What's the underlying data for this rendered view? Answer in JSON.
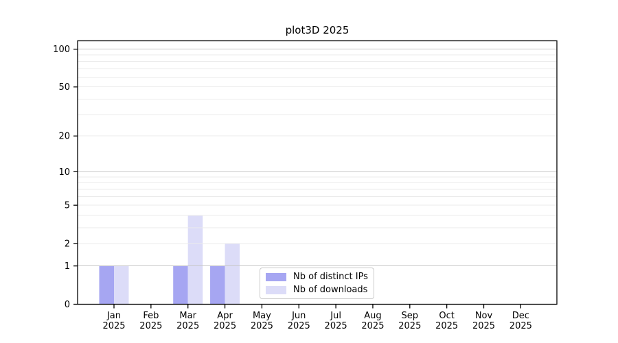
{
  "chart_data": {
    "type": "bar",
    "title": "plot3D 2025",
    "categories": [
      "Jan 2025",
      "Feb 2025",
      "Mar 2025",
      "Apr 2025",
      "May 2025",
      "Jun 2025",
      "Jul 2025",
      "Aug 2025",
      "Sep 2025",
      "Oct 2025",
      "Nov 2025",
      "Dec 2025"
    ],
    "series": [
      {
        "name": "Nb of distinct IPs",
        "color": "#a6a6f2",
        "values": [
          1,
          0,
          1,
          1,
          0,
          0,
          0,
          0,
          0,
          0,
          0,
          0
        ]
      },
      {
        "name": "Nb of downloads",
        "color": "#dcdcf8",
        "values": [
          1,
          0,
          4,
          2,
          0,
          0,
          0,
          0,
          0,
          0,
          0,
          0
        ]
      }
    ],
    "yticks": [
      0,
      1,
      2,
      5,
      10,
      20,
      50,
      100
    ],
    "scale": "log1p",
    "ylim": [
      0,
      117
    ],
    "grid": true,
    "grid_major_values": [
      1,
      10,
      100
    ],
    "legend_position": "lower center",
    "colors": {
      "grid_major": "#c6c6c6",
      "grid_minor": "#ebebeb",
      "axis": "#000000"
    }
  }
}
